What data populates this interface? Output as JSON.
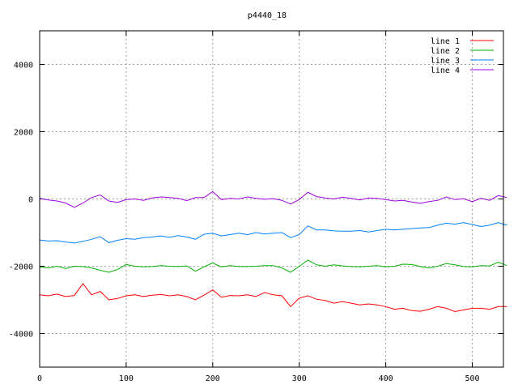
{
  "chart_data": {
    "type": "line",
    "title": "p4440_18",
    "xlabel": "",
    "ylabel": "",
    "xlim": [
      0,
      536
    ],
    "ylim": [
      -5000,
      5000
    ],
    "grid": true,
    "legend_position": "top-right",
    "xticks": [
      0,
      100,
      200,
      300,
      400,
      500
    ],
    "yticks": [
      -4000,
      -2000,
      0,
      2000,
      4000
    ],
    "x": [
      0,
      10,
      20,
      30,
      40,
      50,
      60,
      70,
      80,
      90,
      100,
      110,
      120,
      130,
      140,
      150,
      160,
      170,
      180,
      190,
      200,
      210,
      220,
      230,
      240,
      250,
      260,
      270,
      280,
      290,
      300,
      310,
      320,
      330,
      340,
      350,
      360,
      370,
      380,
      390,
      400,
      410,
      420,
      430,
      440,
      450,
      460,
      470,
      480,
      490,
      500,
      510,
      520,
      530,
      540
    ],
    "series": [
      {
        "name": "line 1",
        "color": "#ff0000",
        "values": [
          -2850,
          -2880,
          -2830,
          -2900,
          -2870,
          -2520,
          -2850,
          -2750,
          -3000,
          -2960,
          -2880,
          -2850,
          -2900,
          -2860,
          -2840,
          -2880,
          -2850,
          -2900,
          -3000,
          -2860,
          -2700,
          -2920,
          -2870,
          -2880,
          -2850,
          -2900,
          -2780,
          -2850,
          -2880,
          -3200,
          -2950,
          -2880,
          -2980,
          -3020,
          -3100,
          -3050,
          -3100,
          -3150,
          -3120,
          -3150,
          -3200,
          -3280,
          -3250,
          -3320,
          -3340,
          -3280,
          -3200,
          -3250,
          -3350,
          -3300,
          -3250,
          -3250,
          -3280,
          -3200,
          -3200
        ]
      },
      {
        "name": "line 2",
        "color": "#00b000",
        "values": [
          -2020,
          -2050,
          -2000,
          -2070,
          -2000,
          -2010,
          -2050,
          -2120,
          -2180,
          -2100,
          -1950,
          -2000,
          -2020,
          -2010,
          -1980,
          -2000,
          -2010,
          -1990,
          -2150,
          -2020,
          -1900,
          -2020,
          -1980,
          -2010,
          -2010,
          -2000,
          -1980,
          -1980,
          -2050,
          -2180,
          -2000,
          -1820,
          -1960,
          -2000,
          -1960,
          -1990,
          -2010,
          -2020,
          -2000,
          -1980,
          -2020,
          -2000,
          -1940,
          -1950,
          -2010,
          -2050,
          -2000,
          -1920,
          -1960,
          -2010,
          -2020,
          -1980,
          -1990,
          -1880,
          -1980
        ]
      },
      {
        "name": "line 3",
        "color": "#0080ff",
        "values": [
          -1220,
          -1250,
          -1240,
          -1280,
          -1310,
          -1260,
          -1200,
          -1120,
          -1300,
          -1230,
          -1180,
          -1200,
          -1150,
          -1130,
          -1100,
          -1140,
          -1090,
          -1130,
          -1200,
          -1050,
          -1020,
          -1100,
          -1060,
          -1020,
          -1060,
          -1000,
          -1040,
          -1020,
          -1000,
          -1150,
          -1060,
          -800,
          -920,
          -920,
          -950,
          -960,
          -960,
          -940,
          -980,
          -940,
          -900,
          -920,
          -900,
          -880,
          -860,
          -850,
          -780,
          -720,
          -750,
          -700,
          -760,
          -820,
          -780,
          -700,
          -780
        ]
      },
      {
        "name": "line 4",
        "color": "#a000e0",
        "values": [
          20,
          -30,
          -60,
          -120,
          -250,
          -120,
          40,
          120,
          -60,
          -100,
          -20,
          0,
          -40,
          30,
          60,
          40,
          20,
          -50,
          40,
          40,
          220,
          -20,
          20,
          0,
          60,
          20,
          -10,
          10,
          -40,
          -150,
          -20,
          200,
          70,
          30,
          0,
          50,
          20,
          -30,
          30,
          20,
          -20,
          -60,
          -40,
          -90,
          -130,
          -80,
          -40,
          60,
          -20,
          10,
          -80,
          20,
          -40,
          100,
          40
        ]
      }
    ]
  }
}
